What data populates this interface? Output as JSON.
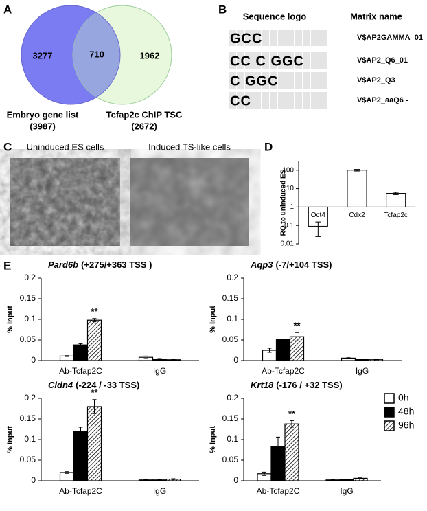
{
  "panel_labels": [
    "A",
    "B",
    "C",
    "D",
    "E"
  ],
  "venn": {
    "left": {
      "count": 3277,
      "label": "Embryo gene list",
      "total": "(3987)",
      "color": "#7b7cf2"
    },
    "overlap": {
      "count": 710,
      "color": "#98a6e0"
    },
    "right": {
      "count": 1962,
      "label": "Tcfap2c ChIP TSC",
      "total": "(2672)",
      "color": "#e8f8dc"
    }
  },
  "logos": {
    "headers": [
      "Sequence logo",
      "Matrix name"
    ],
    "rows": [
      {
        "motif": "GCC",
        "name": "V$AP2GAMMA_01"
      },
      {
        "motif": "CC C GGC",
        "name": "V$AP2_Q6_01"
      },
      {
        "motif": "C GGC",
        "name": "V$AP2_Q3"
      },
      {
        "motif": "CC",
        "name": "V$AP2_aaQ6 -"
      }
    ]
  },
  "images": {
    "captions": [
      "Uninduced ES cells",
      "Induced TS-like cells"
    ]
  },
  "e_legend": [
    {
      "name": "0h",
      "fill": "#ffffff"
    },
    {
      "name": "48h",
      "fill": "#000000"
    },
    {
      "name": "96h",
      "fill": "hatch"
    }
  ],
  "chart_data": [
    {
      "type": "bar",
      "log_scale": true,
      "ylabel": "RQ to uninduced ES",
      "categories": [
        "Oct4",
        "Cdx2",
        "Tcfap2c"
      ],
      "values": [
        0.09,
        100,
        5.5
      ],
      "errors": [
        0.065,
        10,
        0.8
      ],
      "color": "#ffffff",
      "ylim": [
        0.01,
        300
      ],
      "yticks": [
        0.01,
        0.1,
        1,
        10,
        100
      ]
    },
    {
      "type": "grouped_bar",
      "title_gene": "Pard6b",
      "title": "(+275/+363 TSS )",
      "ylabel": "% Input",
      "categories": [
        "Ab-Tcfap2C",
        "IgG"
      ],
      "annotation": "**",
      "series": [
        {
          "values": [
            0.011,
            0.008
          ],
          "errors": [
            0.001,
            0.003
          ]
        },
        {
          "values": [
            0.038,
            0.004
          ],
          "errors": [
            0.003,
            0.001
          ]
        },
        {
          "values": [
            0.098,
            0.002
          ],
          "errors": [
            0.004,
            0.001
          ]
        }
      ],
      "ylim": [
        0,
        0.2
      ],
      "yticks": [
        0,
        0.05,
        0.1,
        0.15,
        0.2
      ]
    },
    {
      "type": "grouped_bar",
      "title_gene": "Aqp3",
      "title": "(-7/+104 TSS)",
      "ylabel": "% Input",
      "categories": [
        "Ab-Tcfap2C",
        "IgG"
      ],
      "annotation": "**",
      "series": [
        {
          "values": [
            0.025,
            0.006
          ],
          "errors": [
            0.005,
            0.001
          ]
        },
        {
          "values": [
            0.051,
            0.003
          ],
          "errors": [
            0.001,
            0.001
          ]
        },
        {
          "values": [
            0.058,
            0.003
          ],
          "errors": [
            0.01,
            0.001
          ]
        }
      ],
      "ylim": [
        0,
        0.2
      ],
      "yticks": [
        0,
        0.05,
        0.1,
        0.15,
        0.2
      ]
    },
    {
      "type": "grouped_bar",
      "title_gene": "Cldn4",
      "title": "(-224 / -33 TSS)",
      "ylabel": "% Input",
      "categories": [
        "Ab-Tcfap2C",
        "IgG"
      ],
      "annotation": "**",
      "series": [
        {
          "values": [
            0.02,
            0.002
          ],
          "errors": [
            0.002,
            0.001
          ]
        },
        {
          "values": [
            0.12,
            0.002
          ],
          "errors": [
            0.01,
            0.001
          ]
        },
        {
          "values": [
            0.18,
            0.004
          ],
          "errors": [
            0.017,
            0.001
          ]
        }
      ],
      "ylim": [
        0,
        0.2
      ],
      "yticks": [
        0,
        0.05,
        0.1,
        0.15,
        0.2
      ]
    },
    {
      "type": "grouped_bar",
      "title_gene": "Krt18",
      "title": "(-176 / +32 TSS)",
      "ylabel": "% Input",
      "categories": [
        "Ab-Tcfap2C",
        "IgG"
      ],
      "annotation": "**",
      "series": [
        {
          "values": [
            0.017,
            0.002
          ],
          "errors": [
            0.004,
            0.001
          ]
        },
        {
          "values": [
            0.083,
            0.003
          ],
          "errors": [
            0.023,
            0.001
          ]
        },
        {
          "values": [
            0.138,
            0.006
          ],
          "errors": [
            0.008,
            0.001
          ]
        }
      ],
      "ylim": [
        0,
        0.2
      ],
      "yticks": [
        0,
        0.05,
        0.1,
        0.15,
        0.2
      ]
    }
  ]
}
